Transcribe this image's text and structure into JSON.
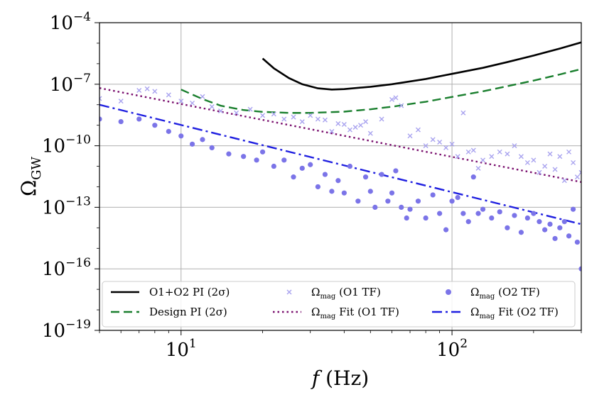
{
  "chart_data": {
    "type": "scatter",
    "xscale": "log",
    "yscale": "log",
    "xlim": [
      5,
      300
    ],
    "ylim": [
      1e-19,
      0.0001
    ],
    "grid": true,
    "legend_placement": "bottom",
    "xlabel": {
      "var": "f",
      "unit": "(Hz)"
    },
    "ylabel": {
      "base": "Ω",
      "sub": "GW"
    },
    "x_ticks": [
      {
        "value": 10,
        "base": "10",
        "exp": "1"
      },
      {
        "value": 100,
        "base": "10",
        "exp": "2"
      }
    ],
    "y_ticks": [
      {
        "value": 0.0001,
        "base": "10",
        "exp": "−4"
      },
      {
        "value": 1e-07,
        "base": "10",
        "exp": "−7"
      },
      {
        "value": 1e-10,
        "base": "10",
        "exp": "−10"
      },
      {
        "value": 1e-13,
        "base": "10",
        "exp": "−13"
      },
      {
        "value": 1e-16,
        "base": "10",
        "exp": "−16"
      },
      {
        "value": 1e-19,
        "base": "10",
        "exp": "−19"
      }
    ],
    "series": [
      {
        "name": "O1+O2 PI (2σ)",
        "kind": "line",
        "style": "solid",
        "color": "#000000",
        "x": [
          20,
          22,
          25,
          28,
          32,
          36,
          40,
          50,
          60,
          80,
          100,
          130,
          160,
          200,
          250,
          300
        ],
        "y": [
          1.8e-06,
          6e-07,
          2e-07,
          1e-07,
          6.3e-08,
          5.5e-08,
          5.8e-08,
          7.5e-08,
          1e-07,
          1.8e-07,
          3.2e-07,
          6.3e-07,
          1.2e-06,
          2.5e-06,
          5.5e-06,
          1.1e-05
        ]
      },
      {
        "name": "Design PI (2σ)",
        "kind": "line",
        "style": "dashed",
        "color": "#1a7f2e",
        "x": [
          10,
          12,
          14,
          17,
          20,
          25,
          30,
          40,
          50,
          60,
          80,
          100,
          130,
          160,
          200,
          250,
          300
        ],
        "y": [
          5.5e-08,
          1.9e-08,
          9e-09,
          5.5e-09,
          4.5e-09,
          4e-09,
          4e-09,
          4.6e-09,
          6e-09,
          8e-09,
          1.4e-08,
          2.4e-08,
          4.5e-08,
          8e-08,
          1.5e-07,
          3e-07,
          5.5e-07
        ]
      },
      {
        "name": "Ω_mag Fit (O1 TF)",
        "kind": "line",
        "style": "dotted",
        "color": "#7a0f6e",
        "x": [
          5,
          300
        ],
        "y": [
          6.5e-08,
          1.7e-12
        ]
      },
      {
        "name": "Ω_mag Fit (O2 TF)",
        "kind": "line",
        "style": "dashdot",
        "color": "#1f1fe0",
        "x": [
          5,
          300
        ],
        "y": [
          1e-08,
          1.5e-14
        ]
      }
    ],
    "scatter_series": [
      {
        "name": "Ω_mag (O1 TF)",
        "marker": "x",
        "color": "#a9a3ef",
        "x": [
          5,
          6,
          7,
          7.5,
          8,
          9,
          10,
          11,
          12,
          13,
          14,
          16,
          18,
          20,
          22,
          24,
          26,
          28,
          30,
          32,
          34,
          36,
          38,
          40,
          42,
          44,
          46,
          48,
          50,
          55,
          60,
          62,
          65,
          70,
          75,
          80,
          85,
          90,
          95,
          100,
          105,
          110,
          115,
          120,
          125,
          130,
          140,
          150,
          160,
          170,
          180,
          190,
          200,
          210,
          220,
          230,
          240,
          250,
          260,
          270,
          280,
          290,
          300
        ],
        "y": [
          2e-08,
          1.5e-08,
          5e-08,
          6e-08,
          4.5e-08,
          3e-08,
          1.5e-08,
          1.2e-08,
          2.5e-08,
          8e-09,
          5e-09,
          4e-09,
          6e-09,
          3e-09,
          3.5e-09,
          2e-09,
          2.5e-09,
          1.5e-09,
          3e-09,
          2e-09,
          1.8e-09,
          5e-10,
          1.2e-09,
          1.1e-09,
          6e-10,
          8e-10,
          1e-09,
          1.5e-09,
          4e-10,
          2e-09,
          1.8e-08,
          2.2e-08,
          9e-09,
          3e-10,
          6e-10,
          1e-10,
          2e-10,
          1.5e-10,
          8e-11,
          1.2e-10,
          3e-11,
          4e-09,
          5e-11,
          6e-11,
          8e-12,
          2e-11,
          3e-11,
          5e-11,
          4e-11,
          1e-10,
          3e-11,
          1.5e-11,
          2e-11,
          5e-12,
          1e-11,
          4e-11,
          7e-12,
          3e-11,
          2e-12,
          5e-11,
          1.5e-11,
          3e-12,
          5e-12
        ]
      },
      {
        "name": "Ω_mag (O2 TF)",
        "marker": "o",
        "color": "#7b74e8",
        "x": [
          5,
          6,
          7,
          8,
          9,
          10,
          11,
          12,
          13,
          15,
          17,
          19,
          20,
          22,
          24,
          26,
          28,
          30,
          32,
          34,
          36,
          38,
          40,
          42,
          45,
          48,
          50,
          52,
          55,
          58,
          60,
          62,
          65,
          68,
          70,
          75,
          80,
          85,
          90,
          95,
          100,
          105,
          110,
          115,
          120,
          125,
          130,
          140,
          150,
          160,
          170,
          180,
          190,
          200,
          210,
          220,
          230,
          240,
          250,
          260,
          270,
          280,
          290,
          300
        ],
        "y": [
          2e-09,
          1.5e-09,
          2e-09,
          1e-09,
          5e-10,
          3e-10,
          1.2e-10,
          2e-10,
          8e-11,
          4e-11,
          3e-11,
          2e-11,
          5e-11,
          1e-11,
          2e-11,
          3e-12,
          8e-12,
          1.2e-11,
          1e-12,
          4e-12,
          6e-13,
          2e-12,
          5e-13,
          1e-11,
          2e-13,
          3e-12,
          6e-13,
          1e-13,
          4e-12,
          2e-13,
          5e-13,
          6e-12,
          1e-13,
          3e-14,
          8e-14,
          2e-13,
          3e-14,
          4e-13,
          5e-14,
          8e-15,
          2e-13,
          3e-13,
          5e-14,
          2e-14,
          3e-12,
          5e-14,
          8e-14,
          3e-14,
          6e-14,
          1e-14,
          4e-14,
          6e-15,
          3e-14,
          5e-14,
          2e-14,
          8e-15,
          1.5e-14,
          3e-15,
          1e-14,
          2e-14,
          4e-15,
          8e-14,
          2e-15,
          1e-16
        ]
      }
    ],
    "legend": [
      {
        "key": "legend-o1o2-pi",
        "label": "O1+O2 PI (2σ)",
        "pre": "",
        "sub": "",
        "post": "",
        "marker": "solid",
        "color": "#000000"
      },
      {
        "key": "legend-omag-o1",
        "label": "",
        "pre": "Ω",
        "sub": "mag",
        "post": " (O1 TF)",
        "marker": "x",
        "color": "#a9a3ef"
      },
      {
        "key": "legend-omag-o2",
        "label": "",
        "pre": "Ω",
        "sub": "mag",
        "post": " (O2 TF)",
        "marker": "o",
        "color": "#7b74e8"
      },
      {
        "key": "legend-design-pi",
        "label": "Design PI (2σ)",
        "pre": "",
        "sub": "",
        "post": "",
        "marker": "dashed",
        "color": "#1a7f2e"
      },
      {
        "key": "legend-fit-o1",
        "label": "",
        "pre": "Ω",
        "sub": "mag",
        "post": " Fit (O1 TF)",
        "marker": "dotted",
        "color": "#7a0f6e"
      },
      {
        "key": "legend-fit-o2",
        "label": "",
        "pre": "Ω",
        "sub": "mag",
        "post": " Fit (O2 TF)",
        "marker": "dashdot",
        "color": "#1f1fe0"
      }
    ]
  }
}
